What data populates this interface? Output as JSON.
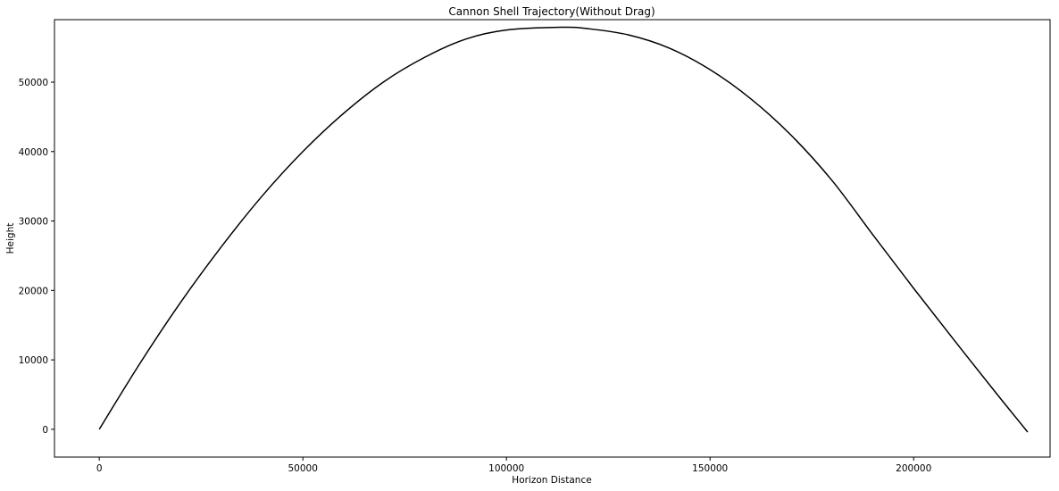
{
  "chart_data": {
    "type": "line",
    "title": "Cannon Shell Trajectory(Without Drag)",
    "xlabel": "Horizon Distance",
    "ylabel": "Height",
    "xlim": [
      -11000,
      233500
    ],
    "ylim": [
      -4000,
      59000
    ],
    "xticks": [
      0,
      50000,
      100000,
      150000,
      200000
    ],
    "yticks": [
      0,
      10000,
      20000,
      30000,
      40000,
      50000
    ],
    "grid": false,
    "legend": "none",
    "series": [
      {
        "color": "#000000",
        "x": [
          0,
          10000,
          20000,
          30000,
          40000,
          50000,
          60000,
          70000,
          80000,
          90000,
          100000,
          113500,
          120000,
          130000,
          140000,
          150000,
          160000,
          170000,
          180000,
          190000,
          200000,
          210000,
          220000,
          228000
        ],
        "y": [
          0,
          9500,
          18300,
          26300,
          33600,
          40000,
          45500,
          50100,
          53600,
          56200,
          57500,
          57900,
          57700,
          56800,
          54900,
          51800,
          47600,
          42300,
          35800,
          28000,
          20300,
          12800,
          5400,
          -400
        ]
      }
    ]
  }
}
